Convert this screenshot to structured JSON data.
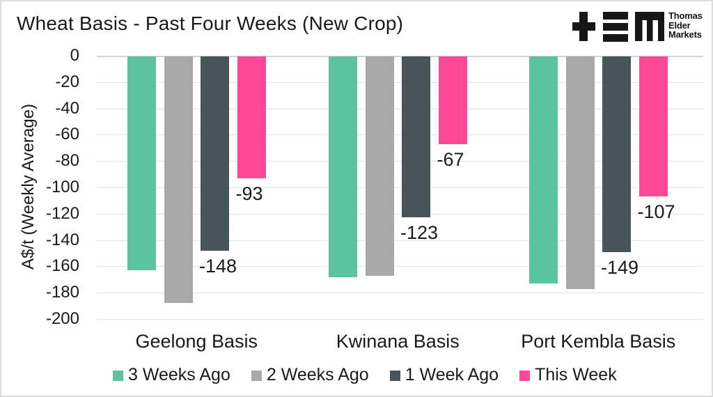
{
  "header": {
    "logo": {
      "mark_icon": "tem-monogram-icon",
      "text_lines": [
        "Thomas",
        "Elder",
        "Markets"
      ]
    }
  },
  "chart_data": {
    "type": "bar",
    "title": "Wheat Basis - Past Four Weeks (New Crop)",
    "ylabel": "A$/t (Weekly Average)",
    "xlabel": "",
    "ylim": [
      -200,
      0
    ],
    "ytick_interval": -20,
    "ytick_labels": [
      "0",
      "-20",
      "-40",
      "-60",
      "-80",
      "-100",
      "-120",
      "-140",
      "-160",
      "-180",
      "-200"
    ],
    "grid": true,
    "legend_position": "bottom",
    "categories": [
      "Geelong Basis",
      "Kwinana Basis",
      "Port Kembla Basis"
    ],
    "series": [
      {
        "name": "3 Weeks Ago",
        "color": "#5cc3a1",
        "values": [
          -163,
          -168,
          -173
        ],
        "data_labels": false
      },
      {
        "name": "2 Weeks Ago",
        "color": "#a9a9a9",
        "values": [
          -188,
          -167,
          -177
        ],
        "data_labels": false
      },
      {
        "name": "1 Week Ago",
        "color": "#475559",
        "values": [
          -148,
          -123,
          -149
        ],
        "data_labels": true
      },
      {
        "name": "This Week",
        "color": "#ff4896",
        "values": [
          -93,
          -67,
          -107
        ],
        "data_labels": true
      }
    ],
    "colors": {
      "text": "#1a1a1a",
      "gridline": "#e3e3e3",
      "zero_line": "#d2d2d2"
    }
  }
}
